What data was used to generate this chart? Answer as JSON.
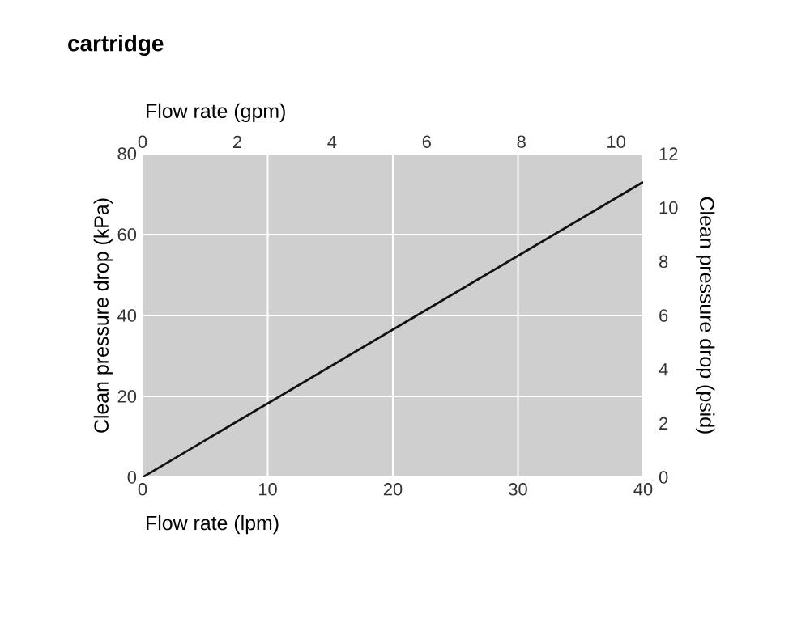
{
  "chart_data": {
    "type": "line",
    "title": "cartridge",
    "xlabel": "Flow rate (lpm)",
    "x2label": "Flow rate (gpm)",
    "ylabel": "Clean pressure drop (kPa)",
    "y2label": "Clean pressure drop (psid)",
    "x": [
      0,
      40
    ],
    "series": [
      {
        "color": "#111111",
        "values": [
          0,
          73
        ]
      }
    ],
    "xlim": [
      0,
      40
    ],
    "xticks": [
      0,
      10,
      20,
      30,
      40
    ],
    "x2lim": [
      0,
      10.57
    ],
    "x2ticks": [
      0,
      2,
      4,
      6,
      8,
      10
    ],
    "ylim": [
      0,
      80
    ],
    "yticks": [
      0,
      20,
      40,
      60,
      80
    ],
    "y2lim": [
      0,
      12
    ],
    "y2ticks": [
      0,
      2,
      4,
      6,
      8,
      10,
      12
    ],
    "grid": true
  }
}
